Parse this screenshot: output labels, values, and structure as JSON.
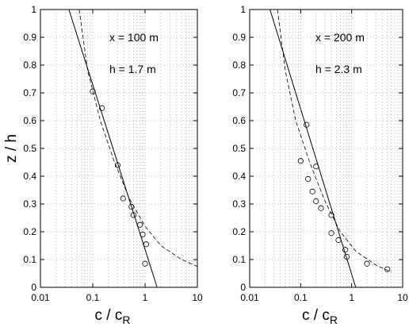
{
  "chart_data": [
    {
      "type": "scatter",
      "annotations": [
        "x = 100 m",
        "h = 1.7 m"
      ],
      "xlabel": "c / c",
      "xlabel_sub": "R",
      "ylabel": "z / h",
      "xscale": "log",
      "xlim": [
        0.01,
        10
      ],
      "ylim": [
        0,
        1
      ],
      "x_ticks": [
        "0.01",
        "0.1",
        "1",
        "10"
      ],
      "y_ticks": [
        "0",
        "0.1",
        "0.2",
        "0.3",
        "0.4",
        "0.5",
        "0.6",
        "0.7",
        "0.8",
        "0.9",
        "1"
      ],
      "grid": true,
      "points": [
        {
          "x": 0.1,
          "y": 0.705
        },
        {
          "x": 0.15,
          "y": 0.645
        },
        {
          "x": 0.3,
          "y": 0.44
        },
        {
          "x": 0.38,
          "y": 0.32
        },
        {
          "x": 0.55,
          "y": 0.29
        },
        {
          "x": 0.6,
          "y": 0.26
        },
        {
          "x": 0.8,
          "y": 0.225
        },
        {
          "x": 0.9,
          "y": 0.19
        },
        {
          "x": 1.05,
          "y": 0.155
        },
        {
          "x": 1.0,
          "y": 0.085
        }
      ],
      "solid_line": [
        [
          0.035,
          1.0
        ],
        [
          1.7,
          0.0
        ]
      ],
      "dashed_curve": [
        [
          0.055,
          1.0
        ],
        [
          0.08,
          0.78
        ],
        [
          0.14,
          0.6
        ],
        [
          0.25,
          0.46
        ],
        [
          0.5,
          0.32
        ],
        [
          1.0,
          0.22
        ],
        [
          2.0,
          0.15
        ],
        [
          5.0,
          0.1
        ],
        [
          10.0,
          0.075
        ]
      ]
    },
    {
      "type": "scatter",
      "annotations": [
        "x = 200 m",
        "h = 2.3 m"
      ],
      "xlabel": "c / c",
      "xlabel_sub": "R",
      "ylabel": "",
      "xscale": "log",
      "xlim": [
        0.01,
        10
      ],
      "ylim": [
        0,
        1
      ],
      "x_ticks": [
        "0.01",
        "0.1",
        "1",
        "10"
      ],
      "y_ticks": [
        "0",
        "0.1",
        "0.2",
        "0.3",
        "0.4",
        "0.5",
        "0.6",
        "0.7",
        "0.8",
        "0.9",
        "1"
      ],
      "grid": true,
      "points": [
        {
          "x": 0.13,
          "y": 0.585
        },
        {
          "x": 0.1,
          "y": 0.455
        },
        {
          "x": 0.2,
          "y": 0.435
        },
        {
          "x": 0.14,
          "y": 0.39
        },
        {
          "x": 0.17,
          "y": 0.345
        },
        {
          "x": 0.2,
          "y": 0.31
        },
        {
          "x": 0.25,
          "y": 0.285
        },
        {
          "x": 0.4,
          "y": 0.26
        },
        {
          "x": 0.4,
          "y": 0.195
        },
        {
          "x": 0.55,
          "y": 0.17
        },
        {
          "x": 0.75,
          "y": 0.135
        },
        {
          "x": 0.8,
          "y": 0.11
        },
        {
          "x": 2.0,
          "y": 0.085
        },
        {
          "x": 5.0,
          "y": 0.065
        }
      ],
      "solid_line": [
        [
          0.025,
          1.0
        ],
        [
          1.2,
          0.0
        ]
      ],
      "dashed_curve": [
        [
          0.035,
          1.0
        ],
        [
          0.05,
          0.78
        ],
        [
          0.08,
          0.6
        ],
        [
          0.15,
          0.45
        ],
        [
          0.3,
          0.31
        ],
        [
          0.6,
          0.2
        ],
        [
          1.2,
          0.13
        ],
        [
          3.0,
          0.08
        ],
        [
          6.0,
          0.055
        ]
      ]
    }
  ]
}
